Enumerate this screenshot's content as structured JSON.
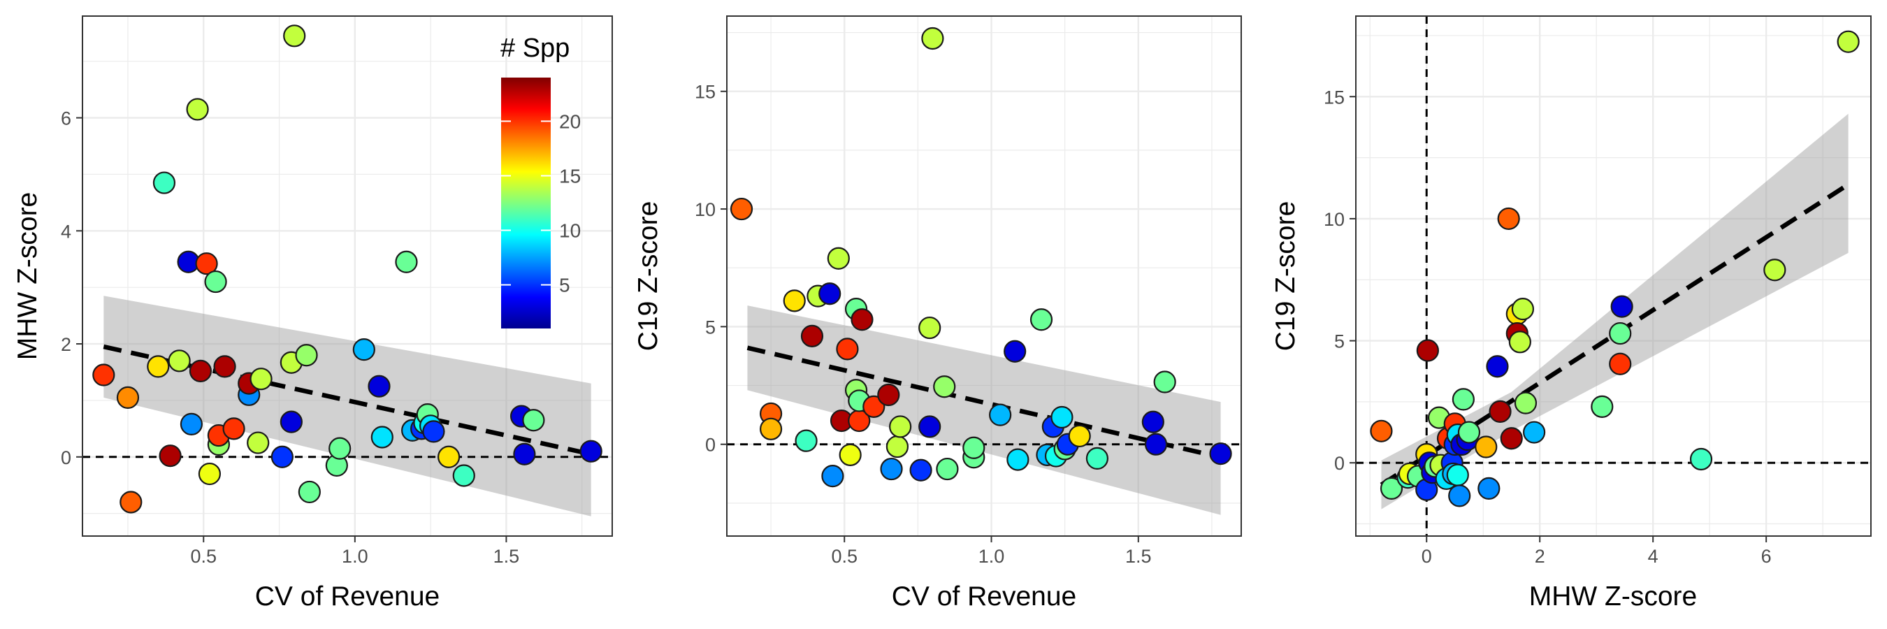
{
  "legend": {
    "title": "# Spp",
    "min": 1,
    "max": 24,
    "ticks": [
      5,
      10,
      15,
      20
    ]
  },
  "chart_data": [
    {
      "type": "scatter",
      "title": "",
      "xlabel": "CV of Revenue",
      "ylabel": "MHW Z-score",
      "xlim": [
        0.1,
        1.85
      ],
      "ylim": [
        -1.4,
        7.8
      ],
      "xticks": [
        0.5,
        1.0,
        1.5
      ],
      "xtick_labels": [
        "0.5",
        "1.0",
        "1.5"
      ],
      "yticks": [
        0,
        2,
        4,
        6
      ],
      "ytick_labels": [
        "0",
        "2",
        "4",
        "6"
      ],
      "grid": true,
      "reference_lines": [
        {
          "orientation": "horizontal",
          "value": 0
        }
      ],
      "trend": {
        "x": [
          0.17,
          1.78
        ],
        "y": [
          1.95,
          0.05
        ]
      },
      "ci_band": {
        "x": [
          0.17,
          1.78
        ],
        "lower": [
          1.05,
          -1.05
        ],
        "upper": [
          2.85,
          1.3
        ]
      },
      "color_by": "# Spp",
      "points": [
        {
          "x": 0.17,
          "y": 1.45,
          "spp": 20
        },
        {
          "x": 0.25,
          "y": 1.05,
          "spp": 18
        },
        {
          "x": 0.26,
          "y": -0.8,
          "spp": 19
        },
        {
          "x": 0.35,
          "y": 1.6,
          "spp": 16
        },
        {
          "x": 0.37,
          "y": 4.85,
          "spp": 11
        },
        {
          "x": 0.39,
          "y": 0.02,
          "spp": 23
        },
        {
          "x": 0.42,
          "y": 1.7,
          "spp": 14
        },
        {
          "x": 0.45,
          "y": 3.45,
          "spp": 3
        },
        {
          "x": 0.46,
          "y": 0.58,
          "spp": 7
        },
        {
          "x": 0.48,
          "y": 6.15,
          "spp": 14
        },
        {
          "x": 0.49,
          "y": 1.52,
          "spp": 23
        },
        {
          "x": 0.51,
          "y": 3.42,
          "spp": 20
        },
        {
          "x": 0.52,
          "y": -0.3,
          "spp": 15
        },
        {
          "x": 0.54,
          "y": 3.1,
          "spp": 12
        },
        {
          "x": 0.55,
          "y": 0.22,
          "spp": 13
        },
        {
          "x": 0.55,
          "y": 0.38,
          "spp": 20
        },
        {
          "x": 0.57,
          "y": 1.6,
          "spp": 23
        },
        {
          "x": 0.6,
          "y": 0.5,
          "spp": 20
        },
        {
          "x": 0.65,
          "y": 1.1,
          "spp": 7
        },
        {
          "x": 0.65,
          "y": 1.3,
          "spp": 23
        },
        {
          "x": 0.68,
          "y": 0.25,
          "spp": 14
        },
        {
          "x": 0.69,
          "y": 1.38,
          "spp": 14
        },
        {
          "x": 0.76,
          "y": 0.0,
          "spp": 5
        },
        {
          "x": 0.79,
          "y": 0.62,
          "spp": 3
        },
        {
          "x": 0.79,
          "y": 1.67,
          "spp": 14
        },
        {
          "x": 0.8,
          "y": 7.45,
          "spp": 14
        },
        {
          "x": 0.84,
          "y": 1.8,
          "spp": 13
        },
        {
          "x": 0.85,
          "y": -0.62,
          "spp": 12
        },
        {
          "x": 0.94,
          "y": -0.15,
          "spp": 12
        },
        {
          "x": 0.95,
          "y": 0.15,
          "spp": 12
        },
        {
          "x": 1.03,
          "y": 1.9,
          "spp": 8
        },
        {
          "x": 1.08,
          "y": 1.25,
          "spp": 3
        },
        {
          "x": 1.09,
          "y": 0.35,
          "spp": 9
        },
        {
          "x": 1.17,
          "y": 3.45,
          "spp": 12
        },
        {
          "x": 1.19,
          "y": 0.47,
          "spp": 8
        },
        {
          "x": 1.22,
          "y": 0.5,
          "spp": 5
        },
        {
          "x": 1.23,
          "y": 0.6,
          "spp": 10
        },
        {
          "x": 1.24,
          "y": 0.75,
          "spp": 12
        },
        {
          "x": 1.25,
          "y": 0.55,
          "spp": 9
        },
        {
          "x": 1.26,
          "y": 0.45,
          "spp": 5
        },
        {
          "x": 1.31,
          "y": 0.0,
          "spp": 16
        },
        {
          "x": 1.36,
          "y": -0.33,
          "spp": 11
        },
        {
          "x": 1.55,
          "y": 0.72,
          "spp": 3
        },
        {
          "x": 1.56,
          "y": 0.05,
          "spp": 3
        },
        {
          "x": 1.59,
          "y": 0.65,
          "spp": 12
        },
        {
          "x": 1.78,
          "y": 0.1,
          "spp": 3
        }
      ]
    },
    {
      "type": "scatter",
      "title": "",
      "xlabel": "CV of Revenue",
      "ylabel": "C19 Z-score",
      "xlim": [
        0.1,
        1.85
      ],
      "ylim": [
        -3.9,
        18.2
      ],
      "xticks": [
        0.5,
        1.0,
        1.5
      ],
      "xtick_labels": [
        "0.5",
        "1.0",
        "1.5"
      ],
      "yticks": [
        0,
        5,
        10,
        15
      ],
      "ytick_labels": [
        "0",
        "5",
        "10",
        "15"
      ],
      "grid": true,
      "reference_lines": [
        {
          "orientation": "horizontal",
          "value": 0
        }
      ],
      "trend": {
        "x": [
          0.17,
          1.78
        ],
        "y": [
          4.1,
          -0.55
        ]
      },
      "ci_band": {
        "x": [
          0.17,
          1.78
        ],
        "lower": [
          2.3,
          -3.0
        ],
        "upper": [
          5.9,
          1.8
        ]
      },
      "color_by": "# Spp",
      "points": [
        {
          "x": 0.15,
          "y": 10.0,
          "spp": 19
        },
        {
          "x": 0.25,
          "y": 1.3,
          "spp": 19
        },
        {
          "x": 0.25,
          "y": 0.65,
          "spp": 17
        },
        {
          "x": 0.33,
          "y": 6.1,
          "spp": 16
        },
        {
          "x": 0.37,
          "y": 0.15,
          "spp": 11
        },
        {
          "x": 0.39,
          "y": 4.6,
          "spp": 23
        },
        {
          "x": 0.41,
          "y": 6.3,
          "spp": 14
        },
        {
          "x": 0.45,
          "y": 6.4,
          "spp": 3
        },
        {
          "x": 0.46,
          "y": -1.35,
          "spp": 7
        },
        {
          "x": 0.48,
          "y": 7.9,
          "spp": 14
        },
        {
          "x": 0.49,
          "y": 1.0,
          "spp": 23
        },
        {
          "x": 0.51,
          "y": 4.05,
          "spp": 20
        },
        {
          "x": 0.52,
          "y": -0.45,
          "spp": 15
        },
        {
          "x": 0.54,
          "y": 5.75,
          "spp": 12
        },
        {
          "x": 0.54,
          "y": 2.3,
          "spp": 13
        },
        {
          "x": 0.55,
          "y": 1.0,
          "spp": 20
        },
        {
          "x": 0.55,
          "y": 1.85,
          "spp": 12
        },
        {
          "x": 0.56,
          "y": 5.3,
          "spp": 23
        },
        {
          "x": 0.6,
          "y": 1.6,
          "spp": 20
        },
        {
          "x": 0.65,
          "y": 2.1,
          "spp": 23
        },
        {
          "x": 0.66,
          "y": -1.05,
          "spp": 7
        },
        {
          "x": 0.68,
          "y": -0.1,
          "spp": 14
        },
        {
          "x": 0.69,
          "y": 0.75,
          "spp": 14
        },
        {
          "x": 0.76,
          "y": -1.1,
          "spp": 5
        },
        {
          "x": 0.79,
          "y": 0.75,
          "spp": 3
        },
        {
          "x": 0.79,
          "y": 4.95,
          "spp": 14
        },
        {
          "x": 0.8,
          "y": 17.25,
          "spp": 14
        },
        {
          "x": 0.84,
          "y": 2.45,
          "spp": 13
        },
        {
          "x": 0.85,
          "y": -1.05,
          "spp": 12
        },
        {
          "x": 0.94,
          "y": -0.55,
          "spp": 12
        },
        {
          "x": 0.94,
          "y": -0.15,
          "spp": 12
        },
        {
          "x": 1.03,
          "y": 1.25,
          "spp": 8
        },
        {
          "x": 1.08,
          "y": 3.95,
          "spp": 3
        },
        {
          "x": 1.09,
          "y": -0.65,
          "spp": 9
        },
        {
          "x": 1.17,
          "y": 5.3,
          "spp": 12
        },
        {
          "x": 1.19,
          "y": -0.45,
          "spp": 8
        },
        {
          "x": 1.21,
          "y": 0.75,
          "spp": 5
        },
        {
          "x": 1.22,
          "y": -0.5,
          "spp": 10
        },
        {
          "x": 1.24,
          "y": 1.15,
          "spp": 9
        },
        {
          "x": 1.25,
          "y": -0.2,
          "spp": 12
        },
        {
          "x": 1.26,
          "y": 0.0,
          "spp": 5
        },
        {
          "x": 1.3,
          "y": 0.35,
          "spp": 16
        },
        {
          "x": 1.36,
          "y": -0.6,
          "spp": 11
        },
        {
          "x": 1.55,
          "y": 0.95,
          "spp": 3
        },
        {
          "x": 1.56,
          "y": 0.0,
          "spp": 3
        },
        {
          "x": 1.59,
          "y": 2.65,
          "spp": 12
        },
        {
          "x": 1.78,
          "y": -0.4,
          "spp": 3
        }
      ]
    },
    {
      "type": "scatter",
      "title": "",
      "xlabel": "MHW Z-score",
      "ylabel": "C19 Z-score",
      "xlim": [
        -1.25,
        7.85
      ],
      "ylim": [
        -3.0,
        18.3
      ],
      "xticks": [
        0,
        2,
        4,
        6
      ],
      "xtick_labels": [
        "0",
        "2",
        "4",
        "6"
      ],
      "yticks": [
        0,
        5,
        10,
        15
      ],
      "ytick_labels": [
        "0",
        "5",
        "10",
        "15"
      ],
      "grid": true,
      "reference_lines": [
        {
          "orientation": "horizontal",
          "value": 0
        },
        {
          "orientation": "vertical",
          "value": 0
        }
      ],
      "trend": {
        "x": [
          -0.8,
          7.45
        ],
        "y": [
          -0.9,
          11.4
        ]
      },
      "ci_band": {
        "x": [
          -0.8,
          1.5,
          7.45
        ],
        "lower": [
          -1.9,
          1.3,
          8.6
        ],
        "upper": [
          0.1,
          2.9,
          14.3
        ]
      },
      "color_by": "# Spp",
      "points": [
        {
          "x": -0.8,
          "y": 1.3,
          "spp": 19
        },
        {
          "x": -0.62,
          "y": -1.05,
          "spp": 12
        },
        {
          "x": -0.33,
          "y": -0.6,
          "spp": 11
        },
        {
          "x": -0.3,
          "y": -0.45,
          "spp": 15
        },
        {
          "x": -0.15,
          "y": -0.55,
          "spp": 12
        },
        {
          "x": 0.0,
          "y": 0.35,
          "spp": 16
        },
        {
          "x": 0.0,
          "y": -1.1,
          "spp": 5
        },
        {
          "x": 0.02,
          "y": 4.6,
          "spp": 23
        },
        {
          "x": 0.05,
          "y": 0.0,
          "spp": 3
        },
        {
          "x": 0.1,
          "y": -0.4,
          "spp": 3
        },
        {
          "x": 0.15,
          "y": -0.15,
          "spp": 12
        },
        {
          "x": 0.22,
          "y": 1.85,
          "spp": 13
        },
        {
          "x": 0.25,
          "y": -0.1,
          "spp": 14
        },
        {
          "x": 0.35,
          "y": -0.65,
          "spp": 9
        },
        {
          "x": 0.38,
          "y": 1.0,
          "spp": 20
        },
        {
          "x": 0.45,
          "y": 0.0,
          "spp": 5
        },
        {
          "x": 0.47,
          "y": -0.45,
          "spp": 8
        },
        {
          "x": 0.5,
          "y": 1.6,
          "spp": 20
        },
        {
          "x": 0.5,
          "y": 0.75,
          "spp": 5
        },
        {
          "x": 0.55,
          "y": 1.15,
          "spp": 9
        },
        {
          "x": 0.55,
          "y": -0.5,
          "spp": 10
        },
        {
          "x": 0.58,
          "y": -1.35,
          "spp": 7
        },
        {
          "x": 0.62,
          "y": 0.75,
          "spp": 3
        },
        {
          "x": 0.65,
          "y": 2.6,
          "spp": 12
        },
        {
          "x": 0.72,
          "y": 0.95,
          "spp": 3
        },
        {
          "x": 0.75,
          "y": 1.25,
          "spp": 12
        },
        {
          "x": 1.05,
          "y": 0.65,
          "spp": 17
        },
        {
          "x": 1.1,
          "y": -1.05,
          "spp": 7
        },
        {
          "x": 1.25,
          "y": 3.95,
          "spp": 3
        },
        {
          "x": 1.3,
          "y": 2.1,
          "spp": 23
        },
        {
          "x": 1.45,
          "y": 10.0,
          "spp": 19
        },
        {
          "x": 1.5,
          "y": 1.0,
          "spp": 23
        },
        {
          "x": 1.6,
          "y": 6.1,
          "spp": 16
        },
        {
          "x": 1.6,
          "y": 5.3,
          "spp": 23
        },
        {
          "x": 1.65,
          "y": 4.95,
          "spp": 14
        },
        {
          "x": 1.7,
          "y": 6.3,
          "spp": 14
        },
        {
          "x": 1.75,
          "y": 2.45,
          "spp": 13
        },
        {
          "x": 1.9,
          "y": 1.25,
          "spp": 8
        },
        {
          "x": 3.1,
          "y": 2.3,
          "spp": 12
        },
        {
          "x": 3.42,
          "y": 4.05,
          "spp": 20
        },
        {
          "x": 3.42,
          "y": 5.3,
          "spp": 12
        },
        {
          "x": 3.45,
          "y": 6.4,
          "spp": 3
        },
        {
          "x": 4.85,
          "y": 0.15,
          "spp": 11
        },
        {
          "x": 6.15,
          "y": 7.9,
          "spp": 14
        },
        {
          "x": 7.45,
          "y": 17.25,
          "spp": 14
        }
      ]
    }
  ]
}
